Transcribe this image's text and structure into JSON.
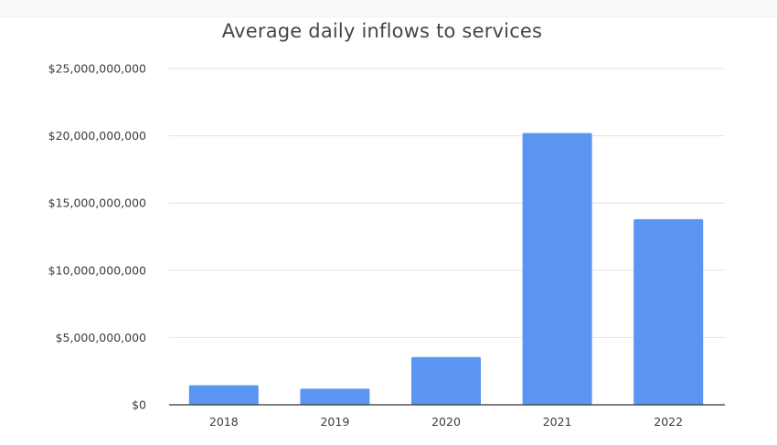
{
  "chart_data": {
    "type": "bar",
    "title": "Average daily inflows to services",
    "xlabel": "",
    "ylabel": "",
    "categories": [
      "2018",
      "2019",
      "2020",
      "2021",
      "2022"
    ],
    "values": [
      1450000000,
      1200000000,
      3550000000,
      20200000000,
      13800000000
    ],
    "ylim": [
      0,
      25000000000
    ],
    "yticks": [
      0,
      5000000000,
      10000000000,
      15000000000,
      20000000000,
      25000000000
    ],
    "ytick_labels": [
      "$0",
      "$5,000,000,000",
      "$10,000,000,000",
      "$15,000,000,000",
      "$20,000,000,000",
      "$25,000,000,000"
    ],
    "grid": true,
    "legend": "none",
    "bar_color": "#5b95f2"
  }
}
